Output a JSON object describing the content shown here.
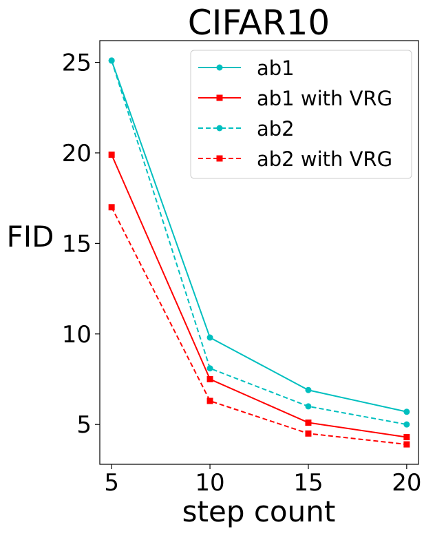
{
  "chart_data": {
    "type": "line",
    "title": "CIFAR10",
    "xlabel": "step count",
    "ylabel": "FID",
    "x": [
      5,
      10,
      15,
      20
    ],
    "xlim": [
      4.4,
      20.6
    ],
    "ylim": [
      2.8,
      26.2
    ],
    "xticks": [
      5,
      10,
      15,
      20
    ],
    "yticks": [
      5,
      10,
      15,
      20,
      25
    ],
    "grid": false,
    "legend_position": "top-right",
    "series": [
      {
        "name": "ab1",
        "values": [
          25.1,
          9.8,
          6.9,
          5.7
        ],
        "color": "#00bfbf",
        "linestyle": "solid",
        "marker": "circle"
      },
      {
        "name": "ab1 with VRG",
        "values": [
          19.9,
          7.5,
          5.1,
          4.3
        ],
        "color": "#ff0000",
        "linestyle": "solid",
        "marker": "square"
      },
      {
        "name": "ab2",
        "values": [
          25.1,
          8.1,
          6.0,
          5.0
        ],
        "color": "#00bfbf",
        "linestyle": "dashed",
        "marker": "circle"
      },
      {
        "name": "ab2 with VRG",
        "values": [
          17.0,
          6.3,
          4.5,
          3.9
        ],
        "color": "#ff0000",
        "linestyle": "dashed",
        "marker": "square"
      }
    ]
  }
}
